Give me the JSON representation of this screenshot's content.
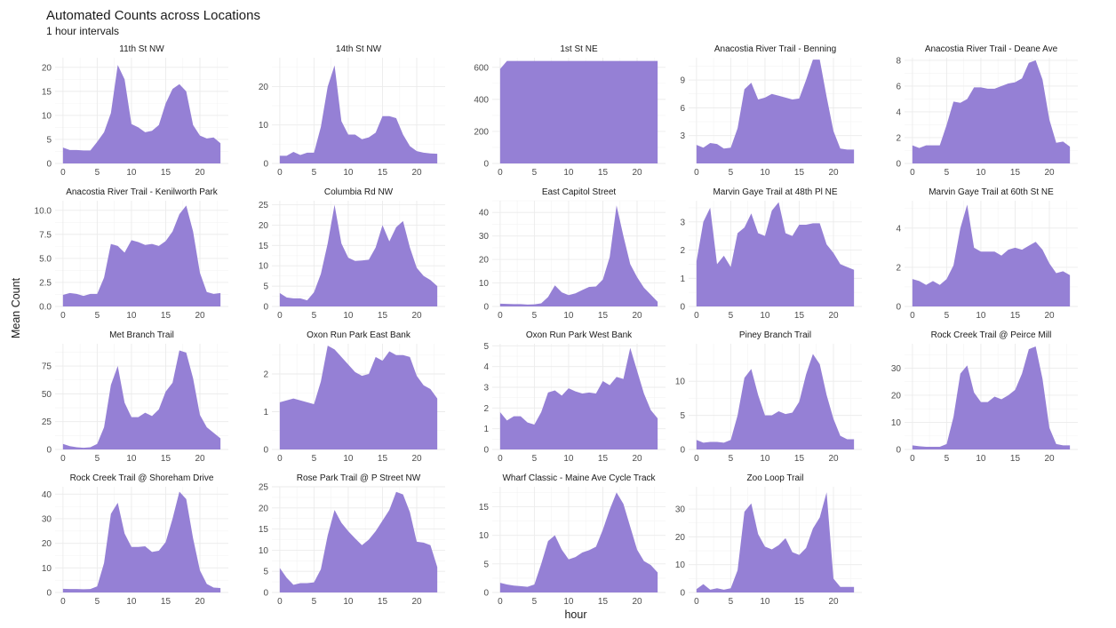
{
  "title": "Automated Counts across Locations",
  "subtitle": "1 hour intervals",
  "xlabel": "hour",
  "ylabel": "Mean Count",
  "colors": {
    "area": "#9580d5"
  },
  "chart_data": {
    "type": "area",
    "title": "Automated Counts across Locations",
    "subtitle": "1 hour intervals",
    "xlabel": "hour",
    "ylabel": "Mean Count",
    "grid": true,
    "facets": true,
    "x_ticks": [
      0,
      5,
      10,
      15,
      20
    ],
    "x": [
      0,
      1,
      2,
      3,
      4,
      5,
      6,
      7,
      8,
      9,
      10,
      11,
      12,
      13,
      14,
      15,
      16,
      17,
      18,
      19,
      20,
      21,
      22,
      23
    ],
    "panels": [
      {
        "name": "11th St NW",
        "ylim": [
          0,
          22
        ],
        "y_ticks": [
          0,
          5,
          10,
          15,
          20
        ],
        "values": [
          3.3,
          2.8,
          2.8,
          2.7,
          2.7,
          4.5,
          6.5,
          10.5,
          20.5,
          17.5,
          8.2,
          7.5,
          6.5,
          6.8,
          8.0,
          12.5,
          15.5,
          16.5,
          15,
          8,
          5.8,
          5.2,
          5.4,
          4.2
        ]
      },
      {
        "name": "14th St NW",
        "ylim": [
          0,
          27.5
        ],
        "y_ticks": [
          0,
          10,
          20
        ],
        "values": [
          2.0,
          2.0,
          3.0,
          2.2,
          2.8,
          2.8,
          9.5,
          20,
          25.5,
          11,
          7.5,
          7.5,
          6.3,
          6.8,
          8.0,
          12.3,
          12.3,
          11.8,
          7.5,
          4.5,
          3.2,
          2.8,
          2.6,
          2.5
        ]
      },
      {
        "name": "1st St NE",
        "ylim": [
          0,
          660
        ],
        "y_ticks": [
          0,
          200,
          400,
          600
        ],
        "values": [
          590,
          640,
          640,
          640,
          640,
          640,
          640,
          640,
          640,
          640,
          640,
          640,
          640,
          640,
          640,
          640,
          640,
          640,
          640,
          640,
          640,
          640,
          640,
          640
        ]
      },
      {
        "name": "Anacostia River Trail - Benning",
        "ylim": [
          0,
          11.4
        ],
        "y_ticks": [
          3,
          6,
          9
        ],
        "values": [
          2.0,
          1.7,
          2.2,
          2.1,
          1.6,
          1.7,
          3.8,
          8.0,
          8.7,
          6.9,
          7.1,
          7.5,
          7.3,
          7.1,
          6.9,
          7.0,
          9.0,
          11.2,
          11.2,
          7.2,
          3.5,
          1.6,
          1.5,
          1.5
        ]
      },
      {
        "name": "Anacostia River Trail - Deane Ave",
        "ylim": [
          0,
          8.2
        ],
        "y_ticks": [
          0,
          2,
          4,
          6,
          8
        ],
        "values": [
          1.4,
          1.2,
          1.4,
          1.4,
          1.4,
          3.0,
          4.8,
          4.7,
          5.0,
          5.9,
          5.9,
          5.8,
          5.8,
          6.0,
          6.2,
          6.3,
          6.6,
          7.8,
          8.0,
          6.5,
          3.4,
          1.6,
          1.7,
          1.3
        ]
      },
      {
        "name": "Anacostia River Trail - Kenilworth Park",
        "ylim": [
          0,
          11
        ],
        "y_ticks": [
          0.0,
          2.5,
          5.0,
          7.5,
          10.0
        ],
        "values": [
          1.2,
          1.4,
          1.3,
          1.1,
          1.3,
          1.3,
          3.0,
          6.5,
          6.3,
          5.6,
          6.9,
          6.7,
          6.4,
          6.5,
          6.3,
          6.8,
          7.8,
          9.6,
          10.5,
          7.8,
          3.5,
          1.5,
          1.3,
          1.4
        ]
      },
      {
        "name": "Columbia Rd NW",
        "ylim": [
          0,
          26
        ],
        "y_ticks": [
          0,
          5,
          10,
          15,
          20,
          25
        ],
        "values": [
          3.3,
          2.2,
          2.0,
          2.0,
          1.5,
          3.5,
          8.0,
          15.5,
          25,
          15.5,
          12.0,
          11.2,
          11.3,
          11.5,
          14.5,
          20.0,
          16.0,
          19.5,
          21.0,
          14.5,
          9.5,
          7.5,
          6.5,
          5.0
        ]
      },
      {
        "name": "East Capitol Street",
        "ylim": [
          0,
          45
        ],
        "y_ticks": [
          0,
          10,
          20,
          30,
          40
        ],
        "values": [
          1.2,
          1.1,
          1.0,
          1.0,
          0.8,
          0.9,
          1.3,
          4.0,
          9.0,
          6.0,
          4.8,
          5.6,
          7.0,
          8.3,
          8.5,
          11.5,
          21,
          43,
          30,
          18,
          12.5,
          8.0,
          5.0,
          2.0
        ]
      },
      {
        "name": "Marvin Gaye Trail at 48th Pl NE",
        "ylim": [
          0,
          3.75
        ],
        "y_ticks": [
          0,
          1,
          2,
          3
        ],
        "values": [
          1.6,
          3.0,
          3.5,
          1.5,
          1.8,
          1.4,
          2.6,
          2.8,
          3.3,
          2.6,
          2.5,
          3.4,
          3.7,
          2.6,
          2.5,
          2.9,
          2.9,
          2.95,
          2.95,
          2.2,
          1.9,
          1.5,
          1.4,
          1.3
        ]
      },
      {
        "name": "Marvin Gaye Trail at 60th St NE",
        "ylim": [
          0,
          5.4
        ],
        "y_ticks": [
          0,
          2,
          4
        ],
        "values": [
          1.4,
          1.3,
          1.1,
          1.3,
          1.1,
          1.4,
          2.1,
          4.0,
          5.2,
          3.0,
          2.8,
          2.8,
          2.8,
          2.6,
          2.9,
          3.0,
          2.9,
          3.1,
          3.3,
          2.9,
          2.2,
          1.7,
          1.8,
          1.6
        ]
      },
      {
        "name": "Met Branch Trail",
        "ylim": [
          0,
          95
        ],
        "y_ticks": [
          0,
          25,
          50,
          75
        ],
        "values": [
          5,
          3,
          2,
          1.5,
          2,
          5,
          20,
          58,
          75,
          42,
          29,
          29,
          33,
          30,
          36,
          52,
          60,
          89,
          87,
          64,
          31,
          20,
          15,
          10
        ]
      },
      {
        "name": "Oxon Run Park East Bank",
        "ylim": [
          0,
          2.8
        ],
        "y_ticks": [
          0,
          1,
          2
        ],
        "values": [
          1.25,
          1.3,
          1.35,
          1.3,
          1.25,
          1.2,
          1.8,
          2.75,
          2.65,
          2.45,
          2.25,
          2.05,
          1.95,
          2.0,
          2.45,
          2.35,
          2.6,
          2.5,
          2.5,
          2.45,
          1.95,
          1.7,
          1.6,
          1.35
        ]
      },
      {
        "name": "Oxon Run Park West Bank",
        "ylim": [
          0,
          5.1
        ],
        "y_ticks": [
          0,
          1,
          2,
          3,
          4,
          5
        ],
        "values": [
          1.8,
          1.4,
          1.6,
          1.6,
          1.3,
          1.2,
          1.8,
          2.75,
          2.85,
          2.6,
          2.95,
          2.8,
          2.7,
          2.75,
          2.7,
          3.3,
          3.1,
          3.5,
          3.4,
          4.9,
          3.8,
          2.7,
          1.9,
          1.5
        ]
      },
      {
        "name": "Piney Branch Trail",
        "ylim": [
          0,
          15.5
        ],
        "y_ticks": [
          0,
          5,
          10
        ],
        "values": [
          1.4,
          1.0,
          1.1,
          1.1,
          1.0,
          1.4,
          5.0,
          10.5,
          11.8,
          8.0,
          5.0,
          5.0,
          5.6,
          5.2,
          5.4,
          7.0,
          11.0,
          14.0,
          12.5,
          8.0,
          4.5,
          2.0,
          1.5,
          1.5
        ]
      },
      {
        "name": "Rock Creek Trail @ Peirce Mill",
        "ylim": [
          0,
          39
        ],
        "y_ticks": [
          0,
          10,
          20,
          30
        ],
        "values": [
          1.5,
          1.2,
          1.0,
          1.0,
          1.0,
          2.0,
          12,
          28,
          31,
          21,
          17.5,
          17.5,
          19.5,
          18.5,
          20,
          22,
          28,
          37,
          38,
          26,
          8.0,
          2.0,
          1.5,
          1.5
        ]
      },
      {
        "name": "Rock Creek Trail @ Shoreham Drive",
        "ylim": [
          0,
          43
        ],
        "y_ticks": [
          0,
          10,
          20,
          30,
          40
        ],
        "values": [
          1.5,
          1.4,
          1.4,
          1.3,
          1.4,
          2.5,
          12,
          32,
          36.5,
          24,
          18.5,
          18.5,
          18.8,
          16.5,
          17,
          20.5,
          30,
          41,
          38,
          22,
          9,
          3.5,
          2.0,
          1.8
        ]
      },
      {
        "name": "Rose Park Trail @ P Street NW",
        "ylim": [
          0,
          25
        ],
        "y_ticks": [
          0,
          5,
          10,
          15,
          20,
          25
        ],
        "values": [
          5.8,
          3.5,
          1.8,
          2.2,
          2.2,
          2.4,
          5.5,
          13.5,
          19.5,
          16.5,
          14.5,
          12.8,
          11.2,
          12.5,
          14.5,
          17.0,
          19.5,
          23.8,
          23.2,
          19,
          12,
          11.8,
          11.2,
          6.0
        ]
      },
      {
        "name": "Wharf Classic - Maine Ave Cycle Track",
        "ylim": [
          0,
          18.5
        ],
        "y_ticks": [
          0,
          5,
          10,
          15
        ],
        "values": [
          1.7,
          1.4,
          1.2,
          1.1,
          1.0,
          1.4,
          5.0,
          9.0,
          10.0,
          7.5,
          5.8,
          6.2,
          7.0,
          7.4,
          8.0,
          11.0,
          14.5,
          17.5,
          15.5,
          11.5,
          7.5,
          5.5,
          4.8,
          3.5
        ]
      },
      {
        "name": "Zoo Loop Trail",
        "ylim": [
          0,
          38
        ],
        "y_ticks": [
          0,
          10,
          20,
          30
        ],
        "values": [
          1.2,
          3.0,
          1.0,
          1.5,
          1.0,
          1.5,
          8.0,
          29,
          32,
          21,
          16.5,
          15.5,
          17,
          19.5,
          14.5,
          13.5,
          16,
          23,
          27,
          36,
          5.0,
          2.0,
          2.0,
          2.0
        ]
      }
    ]
  }
}
